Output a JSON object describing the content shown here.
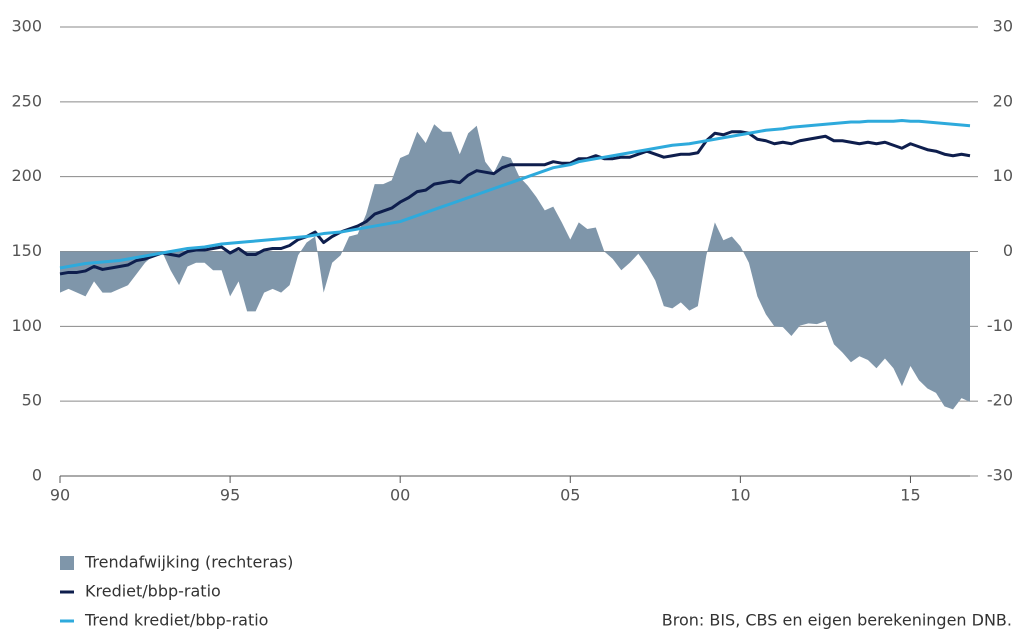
{
  "chart_data": {
    "type": "area-line",
    "x": [
      1990,
      1990.25,
      1990.5,
      1990.75,
      1991,
      1991.25,
      1991.5,
      1991.75,
      1992,
      1992.25,
      1992.5,
      1992.75,
      1993,
      1993.25,
      1993.5,
      1993.75,
      1994,
      1994.25,
      1994.5,
      1994.75,
      1995,
      1995.25,
      1995.5,
      1995.75,
      1996,
      1996.25,
      1996.5,
      1996.75,
      1997,
      1997.25,
      1997.5,
      1997.75,
      1998,
      1998.25,
      1998.5,
      1998.75,
      1999,
      1999.25,
      1999.5,
      1999.75,
      2000,
      2000.25,
      2000.5,
      2000.75,
      2001,
      2001.25,
      2001.5,
      2001.75,
      2002,
      2002.25,
      2002.5,
      2002.75,
      2003,
      2003.25,
      2003.5,
      2003.75,
      2004,
      2004.25,
      2004.5,
      2004.75,
      2005,
      2005.25,
      2005.5,
      2005.75,
      2006,
      2006.25,
      2006.5,
      2006.75,
      2007,
      2007.25,
      2007.5,
      2007.75,
      2008,
      2008.25,
      2008.5,
      2008.75,
      2009,
      2009.25,
      2009.5,
      2009.75,
      2010,
      2010.25,
      2010.5,
      2010.75,
      2011,
      2011.25,
      2011.5,
      2011.75,
      2012,
      2012.25,
      2012.5,
      2012.75,
      2013,
      2013.25,
      2013.5,
      2013.75,
      2014,
      2014.25,
      2014.5,
      2014.75,
      2015,
      2015.25,
      2015.5,
      2015.75,
      2016,
      2016.25,
      2016.5,
      2016.75
    ],
    "series": [
      {
        "name": "Trendafwijking (rechteras)",
        "color": "#7f96aa",
        "axis": "y2",
        "values": [
          -5.5,
          -5,
          -5.5,
          -6,
          -4,
          -5.5,
          -5.5,
          -5,
          -4.5,
          -3,
          -1.5,
          -0.5,
          0,
          -2.5,
          -4.5,
          -2,
          -1.5,
          -1.5,
          -2.5,
          -2.5,
          -6,
          -4,
          -8,
          -8,
          -5.5,
          -5,
          -5.5,
          -4.5,
          -0.5,
          1.2,
          2,
          -5.5,
          -1.5,
          -0.5,
          2,
          2.3,
          5,
          9,
          9,
          9.5,
          12.5,
          13,
          16,
          14.5,
          17,
          16,
          16,
          13,
          15.8,
          16.8,
          12,
          10.5,
          12.8,
          12.5,
          10,
          8.8,
          7.3,
          5.5,
          6,
          3.9,
          1.6,
          3.9,
          3,
          3.2,
          0,
          -1,
          -2.5,
          -1.5,
          -0.3,
          -1.9,
          -3.9,
          -7.3,
          -7.6,
          -6.8,
          -7.9,
          -7.3,
          -0.5,
          3.9,
          1.5,
          2,
          0.7,
          -1.5,
          -6,
          -8.4,
          -10,
          -10.1,
          -11.3,
          -9.9,
          -9.6,
          -9.7,
          -9.3,
          -12.4,
          -13.5,
          -14.8,
          -14,
          -14.5,
          -15.6,
          -14.3,
          -15.6,
          -18,
          -15.3,
          -17.2,
          -18.3,
          -18.9,
          -20.7,
          -21.1,
          -19.6,
          -20.1
        ]
      },
      {
        "name": "Krediet/bbp-ratio",
        "color": "#0e1e4d",
        "values": [
          135,
          136,
          136,
          137,
          140,
          138,
          139,
          140,
          141,
          144,
          145,
          147,
          149,
          148,
          147,
          150,
          151,
          151,
          152,
          153,
          149,
          152,
          148,
          148,
          151,
          152,
          152,
          154,
          158,
          160,
          163,
          156,
          160,
          163,
          165,
          167,
          170,
          175,
          177,
          179,
          183,
          186,
          190,
          191,
          195,
          196,
          197,
          196,
          201,
          204,
          203,
          202,
          206,
          208,
          208,
          208,
          208,
          208,
          210,
          209,
          209,
          212,
          212,
          214,
          212,
          212,
          213,
          213,
          215,
          217,
          215,
          213,
          214,
          215,
          215,
          216,
          224,
          229,
          228,
          230,
          230,
          229,
          225,
          224,
          222,
          223,
          222,
          224,
          225,
          226,
          227,
          224,
          224,
          223,
          222,
          223,
          222,
          223,
          221,
          219,
          222,
          220,
          218,
          217,
          215,
          214,
          215,
          214
        ]
      },
      {
        "name": "Trend krediet/bbp-ratio",
        "color": "#2eaadc",
        "values": [
          139,
          140,
          141,
          142,
          142.5,
          143,
          143.5,
          144,
          145,
          146,
          147,
          148,
          149,
          150,
          151,
          152,
          152.5,
          153,
          154,
          155,
          155.5,
          156,
          156.5,
          157,
          157.5,
          158,
          158.5,
          159,
          159.5,
          160,
          161,
          162,
          162.5,
          163,
          164,
          165,
          166,
          167,
          168,
          169,
          170,
          172,
          174,
          176,
          178,
          180,
          182,
          184,
          186,
          188,
          190,
          192,
          194,
          196,
          198,
          200,
          202,
          204,
          206,
          207,
          208,
          210,
          211,
          212,
          213,
          214,
          215,
          216,
          217,
          218,
          219,
          220,
          221,
          221.5,
          222,
          223,
          224,
          225,
          226,
          227,
          228,
          229,
          230,
          231,
          231.5,
          232,
          233,
          233.5,
          234,
          234.5,
          235,
          235.5,
          236,
          236.5,
          236.5,
          237,
          237,
          237,
          237,
          237.5,
          237,
          237,
          236.5,
          236,
          235.5,
          235,
          234.5,
          234
        ]
      }
    ],
    "xlim": [
      1990,
      2016.75
    ],
    "xticks": [
      {
        "value": 1990,
        "label": "90"
      },
      {
        "value": 1995,
        "label": "95"
      },
      {
        "value": 2000,
        "label": "00"
      },
      {
        "value": 2005,
        "label": "05"
      },
      {
        "value": 2010,
        "label": "10"
      },
      {
        "value": 2015,
        "label": "15"
      }
    ],
    "ylim": [
      0,
      300
    ],
    "yticks": [
      0,
      50,
      100,
      150,
      200,
      250,
      300
    ],
    "y2lim": [
      -30,
      30
    ],
    "y2ticks": [
      -30,
      -20,
      -10,
      0,
      10,
      20,
      30
    ],
    "grid": true,
    "source": "Bron: BIS, CBS en eigen berekeningen DNB."
  }
}
